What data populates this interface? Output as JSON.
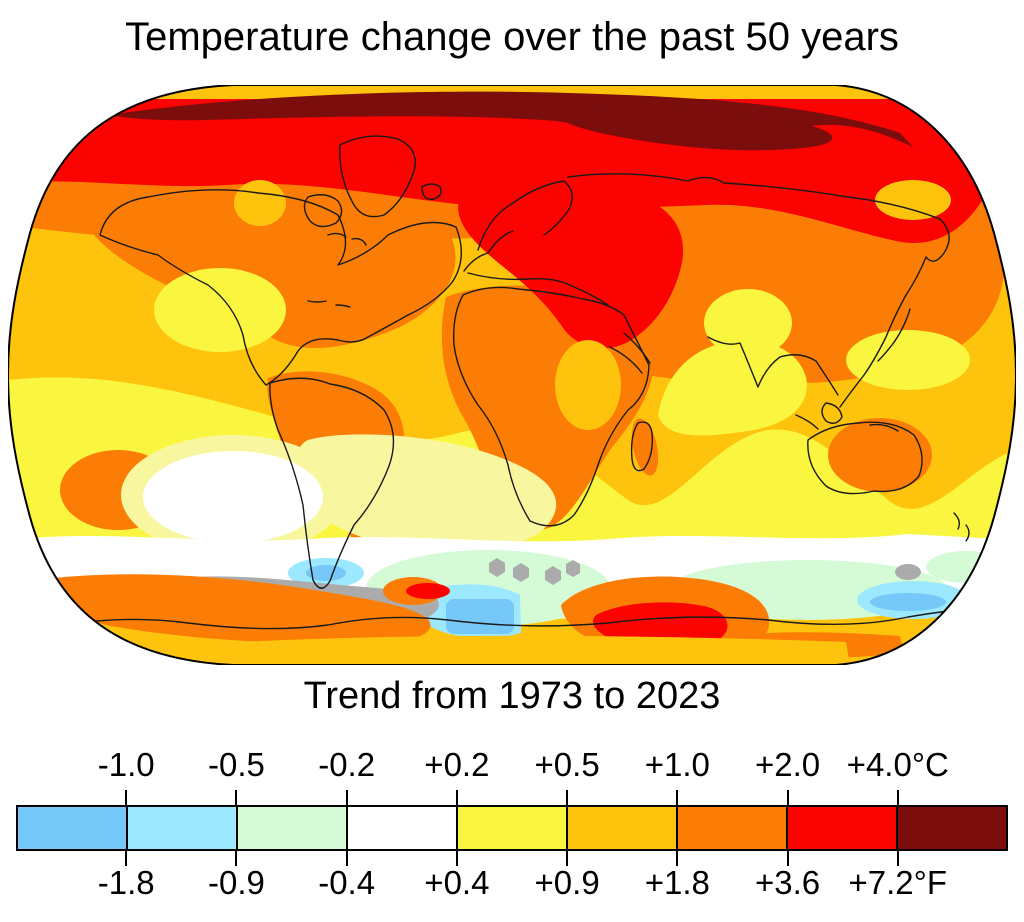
{
  "title": "Temperature change over the past 50 years",
  "subtitle": "Trend from 1973 to 2023",
  "legend": {
    "celsius_labels": [
      "-1.0",
      "-0.5",
      "-0.2",
      "+0.2",
      "+0.5",
      "+1.0",
      "+2.0",
      "+4.0°C"
    ],
    "fahrenheit_labels": [
      "-1.8",
      "-0.9",
      "-0.4",
      "+0.4",
      "+0.9",
      "+1.8",
      "+3.6",
      "+7.2°F"
    ],
    "segments": [
      {
        "name": "below--1.0C",
        "color": "#75C8F8"
      },
      {
        "name": "-1.0C-to--0.5C",
        "color": "#9CE8FE"
      },
      {
        "name": "-0.5C-to--0.2C",
        "color": "#D5FAD6"
      },
      {
        "name": "-0.2C-to-+0.2C",
        "color": "#FFFFFF"
      },
      {
        "name": "+0.2C-to-+0.5C",
        "color": "#FAF63F"
      },
      {
        "name": "+0.5C-to-+1.0C",
        "color": "#FEC40D"
      },
      {
        "name": "+1.0C-to-+2.0C",
        "color": "#FB7D05"
      },
      {
        "name": "+2.0C-to-+4.0C",
        "color": "#FA0300"
      },
      {
        "name": "above-+4.0C",
        "color": "#7B0D0D"
      }
    ]
  },
  "palette": {
    "blue": "#75C8F8",
    "cyan": "#9CE8FE",
    "mint": "#D5FAD6",
    "white": "#FFFFFF",
    "yellow": "#FAF63F",
    "pale_yellow": "#F8F7A0",
    "amber": "#FEC40D",
    "orange": "#FB7D05",
    "red": "#FA0300",
    "dark_red": "#7B0D0D",
    "gray": "#ABABAB",
    "coastline": "#1A1A1A",
    "map_border": "#000000"
  }
}
